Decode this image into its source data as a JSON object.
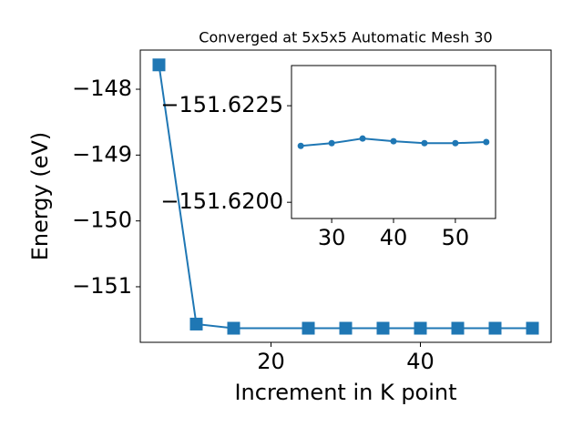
{
  "chart_data": [
    {
      "type": "line",
      "title": "Converged at 5x5x5 Automatic Mesh 30",
      "x_label": "Increment in K point",
      "y_label": "Energy (eV)",
      "x": [
        5,
        10,
        15,
        25,
        30,
        35,
        40,
        45,
        50,
        55
      ],
      "series": [
        {
          "color": "#1f77b4",
          "marker": "square",
          "values": [
            -147.63,
            -151.567,
            -151.63,
            -151.63,
            -151.63,
            -151.63,
            -151.63,
            -151.63,
            -151.63,
            -151.63
          ]
        }
      ],
      "xlim": [
        2.5,
        57.5
      ],
      "xticks": [
        20,
        40
      ],
      "ylim": [
        -151.844,
        -147.405
      ],
      "yticks": [
        {
          "value": -151,
          "label": "−151"
        },
        {
          "value": -150,
          "label": "−150"
        },
        {
          "value": -149,
          "label": "−149"
        },
        {
          "value": -148,
          "label": "−148"
        }
      ]
    },
    {
      "type": "line",
      "x": [
        25,
        30,
        35,
        40,
        45,
        50,
        55
      ],
      "series": [
        {
          "color": "#1f77b4",
          "marker": "circle",
          "values": [
            -151.62146,
            -151.62153,
            -151.62165,
            -151.62158,
            -151.62153,
            -151.62153,
            -151.62156
          ]
        }
      ],
      "xlim": [
        23.5,
        56.5
      ],
      "xticks": [
        30,
        40,
        50
      ],
      "ylim": [
        -151.61958,
        -151.62354
      ],
      "yticks": [
        {
          "value": -151.62,
          "label": "−151.6200"
        },
        {
          "value": -151.6225,
          "label": "−151.6225"
        }
      ]
    }
  ]
}
